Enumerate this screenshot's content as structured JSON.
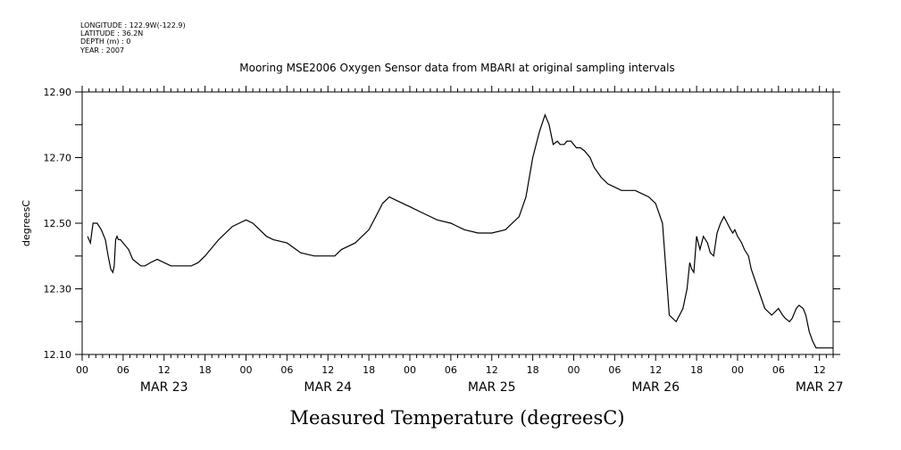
{
  "header": {
    "longitude": "LONGITUDE : 122.9W(-122.9)",
    "latitude": "LATITUDE : 36.2N",
    "depth": "DEPTH (m) : 0",
    "year": "YEAR : 2007"
  },
  "chart_data": {
    "type": "line",
    "title": "Mooring MSE2006 Oxygen Sensor data from MBARI at original sampling intervals",
    "xlabel": "Measured Temperature (degreesC)",
    "ylabel": "degreesC",
    "ylim": [
      12.1,
      12.9
    ],
    "xlim_hours": [
      0,
      110
    ],
    "y_ticks": [
      "12.10",
      "12.30",
      "12.50",
      "12.70",
      "12.90"
    ],
    "x_ticks": [
      "00",
      "06",
      "12",
      "18",
      "00",
      "06",
      "12",
      "18",
      "00",
      "06",
      "12",
      "18",
      "00",
      "06",
      "12",
      "18",
      "00",
      "06",
      "12"
    ],
    "days": [
      "MAR 23",
      "MAR 24",
      "MAR 25",
      "MAR 26",
      "MAR 27"
    ],
    "grid": false,
    "series": [
      {
        "x": [
          0.8,
          1.2,
          1.6,
          2.2,
          2.8,
          3.4,
          3.8,
          4.2,
          4.5,
          4.7,
          4.9,
          5.1,
          5.3,
          5.6,
          6.0,
          6.8,
          7.4,
          8.0,
          8.6,
          9.2,
          10.0,
          11.0,
          12.0,
          13.0,
          14.0,
          15.0,
          16.0,
          17.0,
          18.0,
          20.0,
          22.0,
          23.0,
          24.0,
          25.0,
          26.0,
          27.0,
          28.0,
          30.0,
          32.0,
          34.0,
          35.0,
          36.0,
          37.0,
          38.0,
          40.0,
          42.0,
          43.0,
          44.0,
          45.0,
          46.0,
          47.0,
          48.0,
          50.0,
          52.0,
          54.0,
          56.0,
          58.0,
          60.0,
          62.0,
          64.0,
          65.0,
          66.0,
          67.0,
          67.8,
          68.4,
          69.0,
          69.6,
          70.0,
          70.6,
          71.0,
          71.6,
          72.4,
          73.0,
          73.6,
          74.4,
          75.0,
          76.0,
          77.0,
          78.0,
          79.0,
          80.0,
          81.0,
          82.0,
          83.0,
          84.0,
          85.0,
          86.0,
          87.0,
          88.0,
          88.6,
          89.0,
          89.3,
          89.6,
          90.0,
          90.5,
          91.0,
          91.6,
          92.0,
          92.5,
          93.0,
          93.5,
          94.0,
          94.5,
          95.0,
          95.3,
          95.6,
          96.0,
          96.6,
          97.0,
          97.6,
          98.0,
          99.0,
          100.0,
          101.0,
          102.0,
          102.6,
          103.0,
          103.6,
          104.0,
          104.6,
          105.0,
          105.6,
          106.0,
          106.5,
          107.0,
          107.5,
          108.0,
          108.5,
          109.0,
          109.5,
          110.0
        ],
        "y": [
          12.46,
          12.44,
          12.5,
          12.5,
          12.48,
          12.45,
          12.4,
          12.36,
          12.35,
          12.37,
          12.45,
          12.46,
          12.45,
          12.45,
          12.44,
          12.42,
          12.39,
          12.38,
          12.37,
          12.37,
          12.38,
          12.39,
          12.38,
          12.37,
          12.37,
          12.37,
          12.37,
          12.38,
          12.4,
          12.45,
          12.49,
          12.5,
          12.51,
          12.5,
          12.48,
          12.46,
          12.45,
          12.44,
          12.41,
          12.4,
          12.4,
          12.4,
          12.4,
          12.42,
          12.44,
          12.48,
          12.52,
          12.56,
          12.58,
          12.57,
          12.56,
          12.55,
          12.53,
          12.51,
          12.5,
          12.48,
          12.47,
          12.47,
          12.48,
          12.52,
          12.58,
          12.7,
          12.78,
          12.83,
          12.8,
          12.74,
          12.75,
          12.74,
          12.74,
          12.75,
          12.75,
          12.73,
          12.73,
          12.72,
          12.7,
          12.67,
          12.64,
          12.62,
          12.61,
          12.6,
          12.6,
          12.6,
          12.59,
          12.58,
          12.56,
          12.5,
          12.22,
          12.2,
          12.24,
          12.3,
          12.38,
          12.36,
          12.35,
          12.46,
          12.42,
          12.46,
          12.44,
          12.41,
          12.4,
          12.47,
          12.5,
          12.52,
          12.5,
          12.48,
          12.47,
          12.48,
          12.46,
          12.44,
          12.42,
          12.4,
          12.36,
          12.3,
          12.24,
          12.22,
          12.24,
          12.22,
          12.21,
          12.2,
          12.21,
          12.24,
          12.25,
          12.24,
          12.22,
          12.17,
          12.14,
          12.12,
          12.12,
          12.12,
          12.12,
          12.12,
          12.12
        ]
      }
    ]
  }
}
